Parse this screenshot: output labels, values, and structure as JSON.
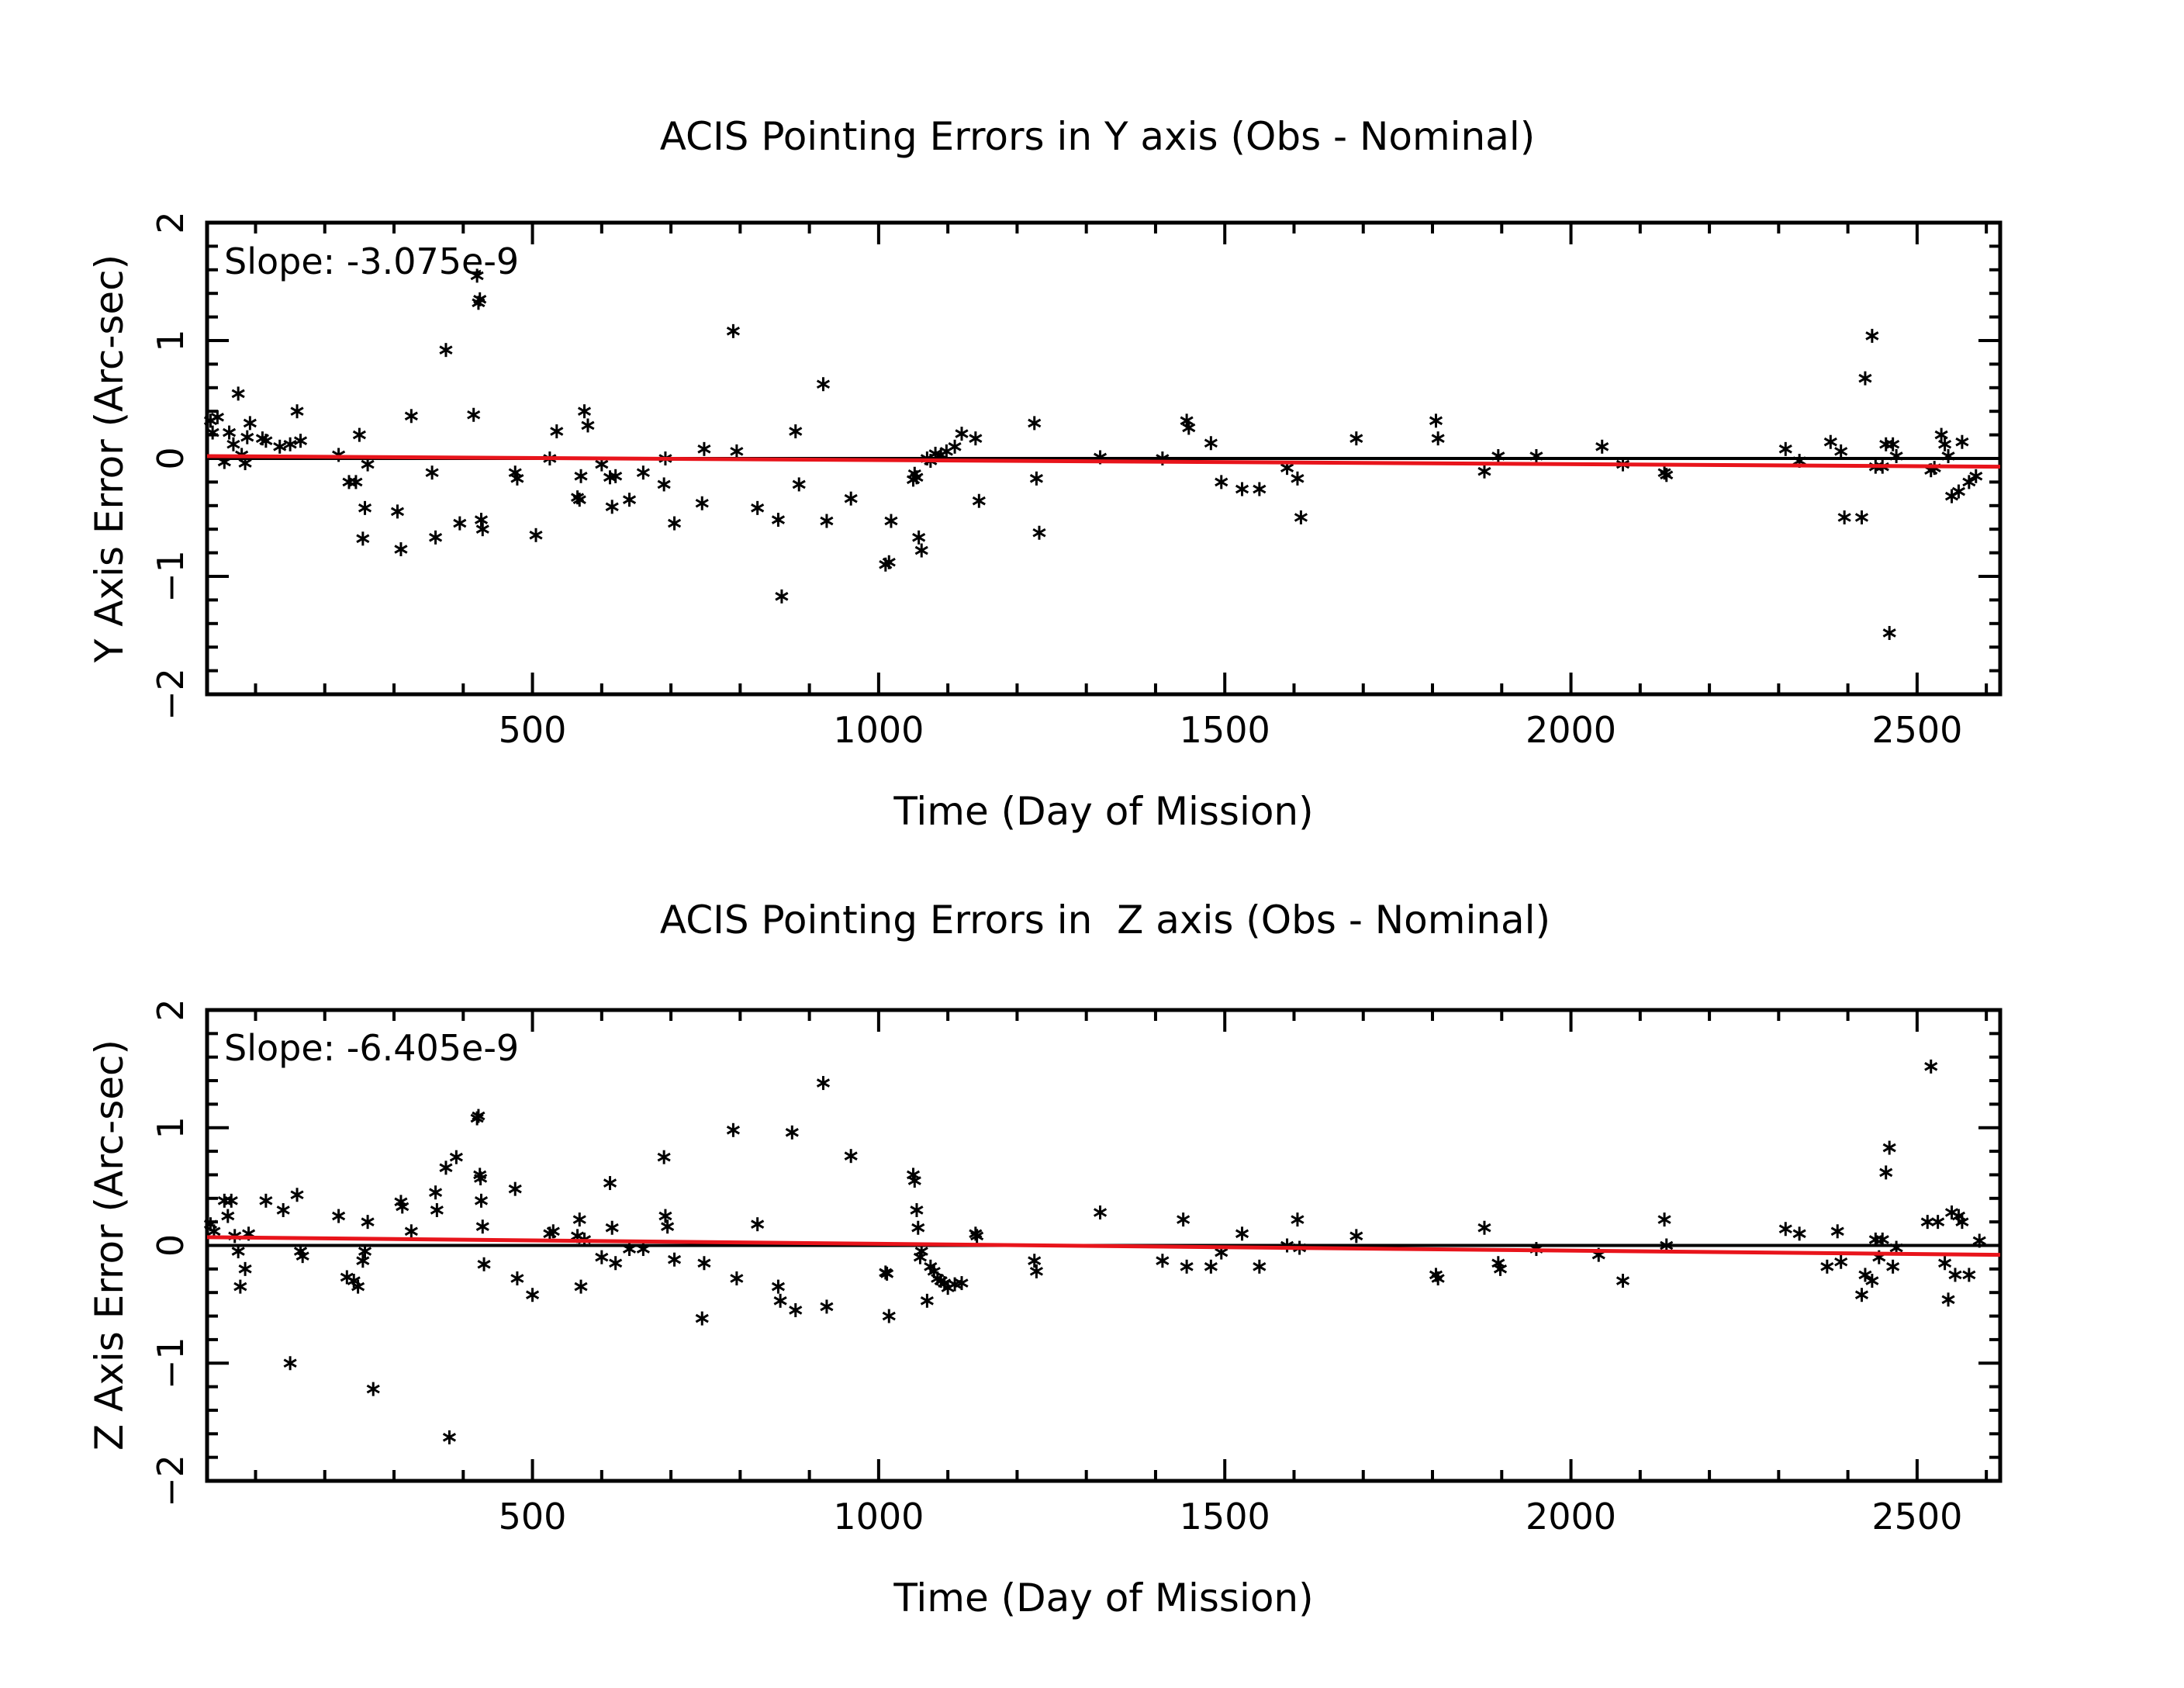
{
  "chart_data": [
    {
      "type": "scatter",
      "title": "ACIS Pointing Errors in Y axis (Obs - Nominal)",
      "xlabel": "Time (Day of Mission)",
      "ylabel": "Y Axis Error (Arc-sec)",
      "xlim": [
        30,
        2620
      ],
      "ylim": [
        -2,
        2
      ],
      "xticks": [
        500,
        1000,
        1500,
        2000,
        2500
      ],
      "yticks": [
        -2,
        -1,
        0,
        1,
        2
      ],
      "annotation": "Slope: -3.075e-9",
      "marker": "*",
      "colors": {
        "points": "#000000",
        "zero_line": "#000000",
        "fit_line": "#e8141b"
      },
      "zero_line": 0,
      "fit_line": {
        "x": [
          30,
          2620
        ],
        "y": [
          0.02,
          -0.07
        ]
      },
      "points": [
        [
          35,
          0.32
        ],
        [
          38,
          0.22
        ],
        [
          45,
          0.35
        ],
        [
          55,
          -0.03
        ],
        [
          62,
          0.22
        ],
        [
          68,
          0.12
        ],
        [
          75,
          0.55
        ],
        [
          80,
          0.03
        ],
        [
          85,
          -0.04
        ],
        [
          88,
          0.18
        ],
        [
          92,
          0.3
        ],
        [
          110,
          0.17
        ],
        [
          115,
          0.15
        ],
        [
          135,
          0.1
        ],
        [
          150,
          0.12
        ],
        [
          160,
          0.4
        ],
        [
          165,
          0.15
        ],
        [
          220,
          0.03
        ],
        [
          235,
          -0.2
        ],
        [
          245,
          -0.2
        ],
        [
          250,
          0.2
        ],
        [
          255,
          -0.68
        ],
        [
          258,
          -0.42
        ],
        [
          262,
          -0.05
        ],
        [
          305,
          -0.45
        ],
        [
          310,
          -0.77
        ],
        [
          325,
          0.36
        ],
        [
          355,
          -0.12
        ],
        [
          360,
          -0.67
        ],
        [
          375,
          0.92
        ],
        [
          395,
          -0.55
        ],
        [
          415,
          0.37
        ],
        [
          420,
          1.55
        ],
        [
          422,
          1.32
        ],
        [
          424,
          1.35
        ],
        [
          426,
          -0.52
        ],
        [
          428,
          -0.6
        ],
        [
          475,
          -0.12
        ],
        [
          478,
          -0.17
        ],
        [
          505,
          -0.65
        ],
        [
          525,
          0.0
        ],
        [
          535,
          0.23
        ],
        [
          565,
          -0.33
        ],
        [
          568,
          -0.35
        ],
        [
          570,
          -0.15
        ],
        [
          575,
          0.4
        ],
        [
          580,
          0.28
        ],
        [
          600,
          -0.05
        ],
        [
          612,
          -0.16
        ],
        [
          615,
          -0.41
        ],
        [
          620,
          -0.15
        ],
        [
          640,
          -0.35
        ],
        [
          660,
          -0.12
        ],
        [
          690,
          -0.22
        ],
        [
          692,
          0.0
        ],
        [
          705,
          -0.55
        ],
        [
          745,
          -0.38
        ],
        [
          748,
          0.08
        ],
        [
          790,
          1.08
        ],
        [
          795,
          0.06
        ],
        [
          825,
          -0.42
        ],
        [
          855,
          -0.52
        ],
        [
          860,
          -1.17
        ],
        [
          880,
          0.23
        ],
        [
          885,
          -0.22
        ],
        [
          920,
          0.63
        ],
        [
          925,
          -0.53
        ],
        [
          960,
          -0.34
        ],
        [
          1010,
          -0.9
        ],
        [
          1015,
          -0.88
        ],
        [
          1018,
          -0.53
        ],
        [
          1050,
          -0.18
        ],
        [
          1052,
          -0.13
        ],
        [
          1055,
          -0.16
        ],
        [
          1058,
          -0.67
        ],
        [
          1062,
          -0.78
        ],
        [
          1070,
          0.0
        ],
        [
          1075,
          -0.02
        ],
        [
          1082,
          0.04
        ],
        [
          1090,
          0.03
        ],
        [
          1098,
          0.06
        ],
        [
          1110,
          0.1
        ],
        [
          1120,
          0.21
        ],
        [
          1140,
          0.17
        ],
        [
          1145,
          -0.36
        ],
        [
          1225,
          0.3
        ],
        [
          1228,
          -0.17
        ],
        [
          1232,
          -0.63
        ],
        [
          1320,
          0.01
        ],
        [
          1410,
          0.0
        ],
        [
          1445,
          0.32
        ],
        [
          1448,
          0.26
        ],
        [
          1480,
          0.13
        ],
        [
          1495,
          -0.2
        ],
        [
          1525,
          -0.26
        ],
        [
          1550,
          -0.26
        ],
        [
          1590,
          -0.08
        ],
        [
          1605,
          -0.17
        ],
        [
          1610,
          -0.5
        ],
        [
          1690,
          0.17
        ],
        [
          1805,
          0.32
        ],
        [
          1808,
          0.17
        ],
        [
          1875,
          -0.11
        ],
        [
          1895,
          0.02
        ],
        [
          1950,
          0.02
        ],
        [
          2045,
          0.1
        ],
        [
          2075,
          -0.05
        ],
        [
          2135,
          -0.12
        ],
        [
          2138,
          -0.14
        ],
        [
          2310,
          0.08
        ],
        [
          2330,
          -0.02
        ],
        [
          2375,
          0.14
        ],
        [
          2390,
          0.06
        ],
        [
          2395,
          -0.5
        ],
        [
          2420,
          -0.5
        ],
        [
          2425,
          0.68
        ],
        [
          2435,
          1.04
        ],
        [
          2440,
          -0.07
        ],
        [
          2450,
          -0.07
        ],
        [
          2455,
          0.12
        ],
        [
          2460,
          -1.48
        ],
        [
          2465,
          0.12
        ],
        [
          2470,
          0.02
        ],
        [
          2520,
          -0.1
        ],
        [
          2525,
          -0.08
        ],
        [
          2535,
          0.2
        ],
        [
          2540,
          0.12
        ],
        [
          2545,
          0.02
        ],
        [
          2550,
          -0.32
        ],
        [
          2560,
          -0.28
        ],
        [
          2565,
          0.14
        ],
        [
          2575,
          -0.2
        ],
        [
          2585,
          -0.15
        ]
      ]
    },
    {
      "type": "scatter",
      "title": "ACIS Pointing Errors in  Z axis (Obs - Nominal)",
      "xlabel": "Time (Day of Mission)",
      "ylabel": "Z Axis Error (Arc-sec)",
      "xlim": [
        30,
        2620
      ],
      "ylim": [
        -2,
        2
      ],
      "xticks": [
        500,
        1000,
        1500,
        2000,
        2500
      ],
      "yticks": [
        -2,
        -1,
        0,
        1,
        2
      ],
      "annotation": "Slope: -6.405e-9",
      "marker": "*",
      "colors": {
        "points": "#000000",
        "zero_line": "#000000",
        "fit_line": "#e8141b"
      },
      "zero_line": 0,
      "fit_line": {
        "x": [
          30,
          2620
        ],
        "y": [
          0.07,
          -0.08
        ]
      },
      "points": [
        [
          35,
          0.18
        ],
        [
          40,
          0.12
        ],
        [
          55,
          0.38
        ],
        [
          60,
          0.25
        ],
        [
          65,
          0.38
        ],
        [
          70,
          0.08
        ],
        [
          75,
          -0.05
        ],
        [
          78,
          -0.35
        ],
        [
          85,
          -0.2
        ],
        [
          90,
          0.1
        ],
        [
          115,
          0.38
        ],
        [
          140,
          0.3
        ],
        [
          150,
          -1.0
        ],
        [
          160,
          0.43
        ],
        [
          165,
          -0.05
        ],
        [
          168,
          -0.09
        ],
        [
          220,
          0.25
        ],
        [
          232,
          -0.27
        ],
        [
          242,
          -0.3
        ],
        [
          248,
          -0.35
        ],
        [
          255,
          -0.13
        ],
        [
          258,
          -0.05
        ],
        [
          262,
          0.2
        ],
        [
          270,
          -1.22
        ],
        [
          310,
          0.37
        ],
        [
          312,
          0.33
        ],
        [
          325,
          0.12
        ],
        [
          360,
          0.45
        ],
        [
          362,
          0.3
        ],
        [
          375,
          0.66
        ],
        [
          380,
          -1.63
        ],
        [
          390,
          0.75
        ],
        [
          420,
          1.08
        ],
        [
          422,
          1.1
        ],
        [
          424,
          0.6
        ],
        [
          425,
          0.57
        ],
        [
          426,
          0.38
        ],
        [
          428,
          0.16
        ],
        [
          430,
          -0.16
        ],
        [
          475,
          0.48
        ],
        [
          478,
          -0.28
        ],
        [
          500,
          -0.42
        ],
        [
          525,
          0.1
        ],
        [
          530,
          0.12
        ],
        [
          565,
          0.08
        ],
        [
          568,
          0.22
        ],
        [
          570,
          -0.35
        ],
        [
          575,
          0.05
        ],
        [
          600,
          -0.1
        ],
        [
          612,
          0.53
        ],
        [
          615,
          0.15
        ],
        [
          620,
          -0.15
        ],
        [
          640,
          -0.03
        ],
        [
          660,
          -0.03
        ],
        [
          690,
          0.75
        ],
        [
          692,
          0.25
        ],
        [
          695,
          0.16
        ],
        [
          705,
          -0.12
        ],
        [
          745,
          -0.62
        ],
        [
          748,
          -0.15
        ],
        [
          790,
          0.98
        ],
        [
          795,
          -0.28
        ],
        [
          825,
          0.18
        ],
        [
          855,
          -0.35
        ],
        [
          858,
          -0.47
        ],
        [
          875,
          0.96
        ],
        [
          880,
          -0.55
        ],
        [
          920,
          1.38
        ],
        [
          925,
          -0.52
        ],
        [
          960,
          0.76
        ],
        [
          1010,
          -0.23
        ],
        [
          1012,
          -0.24
        ],
        [
          1015,
          -0.6
        ],
        [
          1050,
          0.6
        ],
        [
          1052,
          0.55
        ],
        [
          1055,
          0.3
        ],
        [
          1057,
          0.15
        ],
        [
          1060,
          -0.1
        ],
        [
          1062,
          -0.05
        ],
        [
          1070,
          -0.47
        ],
        [
          1075,
          -0.18
        ],
        [
          1080,
          -0.22
        ],
        [
          1085,
          -0.28
        ],
        [
          1090,
          -0.3
        ],
        [
          1095,
          -0.32
        ],
        [
          1100,
          -0.36
        ],
        [
          1110,
          -0.33
        ],
        [
          1120,
          -0.32
        ],
        [
          1140,
          0.1
        ],
        [
          1142,
          0.08
        ],
        [
          1225,
          -0.13
        ],
        [
          1228,
          -0.22
        ],
        [
          1320,
          0.28
        ],
        [
          1410,
          -0.13
        ],
        [
          1440,
          0.22
        ],
        [
          1445,
          -0.18
        ],
        [
          1480,
          -0.18
        ],
        [
          1495,
          -0.06
        ],
        [
          1525,
          0.1
        ],
        [
          1550,
          -0.18
        ],
        [
          1590,
          0.0
        ],
        [
          1605,
          0.22
        ],
        [
          1608,
          -0.02
        ],
        [
          1690,
          0.08
        ],
        [
          1805,
          -0.25
        ],
        [
          1808,
          -0.28
        ],
        [
          1875,
          0.15
        ],
        [
          1895,
          -0.15
        ],
        [
          1898,
          -0.2
        ],
        [
          1950,
          -0.03
        ],
        [
          2040,
          -0.08
        ],
        [
          2075,
          -0.3
        ],
        [
          2135,
          0.22
        ],
        [
          2138,
          0.0
        ],
        [
          2310,
          0.14
        ],
        [
          2330,
          0.1
        ],
        [
          2370,
          -0.18
        ],
        [
          2385,
          0.12
        ],
        [
          2390,
          -0.14
        ],
        [
          2420,
          -0.42
        ],
        [
          2425,
          -0.25
        ],
        [
          2435,
          -0.3
        ],
        [
          2440,
          0.05
        ],
        [
          2445,
          -0.1
        ],
        [
          2450,
          0.05
        ],
        [
          2455,
          0.62
        ],
        [
          2460,
          0.83
        ],
        [
          2465,
          -0.18
        ],
        [
          2470,
          -0.02
        ],
        [
          2515,
          0.2
        ],
        [
          2520,
          1.52
        ],
        [
          2530,
          0.2
        ],
        [
          2540,
          -0.15
        ],
        [
          2545,
          -0.46
        ],
        [
          2550,
          0.28
        ],
        [
          2555,
          -0.25
        ],
        [
          2560,
          0.25
        ],
        [
          2565,
          0.2
        ],
        [
          2575,
          -0.25
        ],
        [
          2590,
          0.04
        ]
      ]
    }
  ]
}
